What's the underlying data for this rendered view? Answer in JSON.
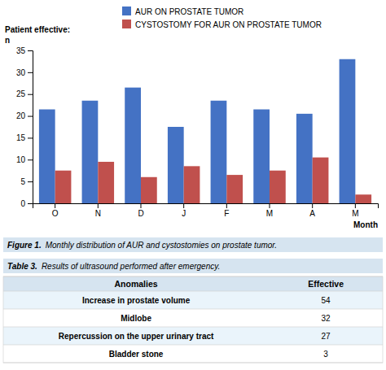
{
  "chart_data": {
    "type": "bar",
    "categories": [
      "O",
      "N",
      "D",
      "J",
      "F",
      "M",
      "A",
      "M"
    ],
    "series": [
      {
        "name": "AUR ON PROSTATE TUMOR",
        "color": "#4472C4",
        "values": [
          21.5,
          23.5,
          26.5,
          17.5,
          23.5,
          21.5,
          20.5,
          33
        ]
      },
      {
        "name": "CYSTOSTOMY FOR AUR ON PROSTATE TUMOR",
        "color": "#C0504D",
        "values": [
          7.5,
          9.5,
          6,
          8.5,
          6.5,
          7.5,
          10.5,
          2
        ]
      }
    ],
    "ylim": [
      0,
      35
    ],
    "yticks": [
      0,
      5,
      10,
      15,
      20,
      25,
      30,
      35
    ],
    "ylabel": [
      "Patient effective:",
      "n"
    ],
    "xlabel": "Month",
    "legend": "top",
    "grid": false,
    "caption": {
      "label": "Figure 1.",
      "text": "Monthly distribution of AUR and cystostomies on prostate tumor."
    },
    "table": {
      "title": {
        "label": "Table 3.",
        "text": "Results of ultrasound performed after emergency."
      },
      "headers": [
        "Anomalies",
        "Effective"
      ],
      "rows": [
        [
          "Increase in prostate volume",
          "54"
        ],
        [
          "Midlobe",
          "32"
        ],
        [
          "Repercussion on the upper urinary tract",
          "27"
        ],
        [
          "Bladder stone",
          "3"
        ]
      ]
    }
  }
}
